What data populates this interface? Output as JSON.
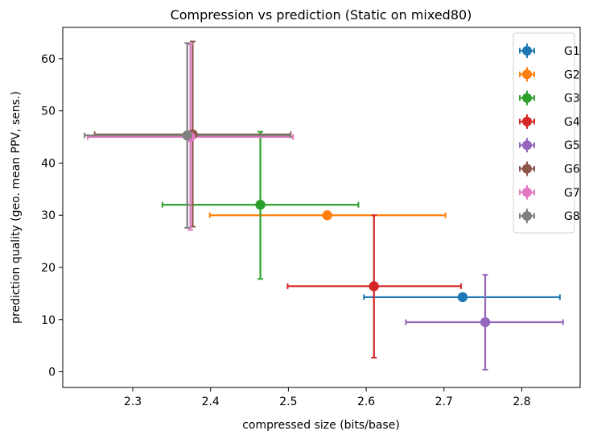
{
  "chart_data": {
    "type": "scatter",
    "title": "Compression vs prediction (Static on mixed80)",
    "xlabel": "compressed size (bits/base)",
    "ylabel": "prediction quality (geo. mean PPV, sens.)",
    "xlim": [
      2.21,
      2.875
    ],
    "ylim": [
      -3,
      66
    ],
    "xticks": [
      "2.3",
      "2.4",
      "2.5",
      "2.6",
      "2.7",
      "2.8"
    ],
    "yticks": [
      "0",
      "10",
      "20",
      "30",
      "40",
      "50",
      "60"
    ],
    "legend_position": "top-right",
    "series": [
      {
        "name": "G1",
        "color": "#1f77b4",
        "x": 2.724,
        "y": 14.3,
        "xerr": [
          2.597,
          2.849
        ],
        "yerr": [
          14.3,
          14.3
        ]
      },
      {
        "name": "G2",
        "color": "#ff7f0e",
        "x": 2.55,
        "y": 30.0,
        "xerr": [
          2.399,
          2.702
        ],
        "yerr": [
          30.0,
          30.0
        ]
      },
      {
        "name": "G3",
        "color": "#2ca02c",
        "x": 2.464,
        "y": 32.0,
        "xerr": [
          2.338,
          2.59
        ],
        "yerr": [
          17.8,
          46.0
        ]
      },
      {
        "name": "G4",
        "color": "#d62728",
        "x": 2.61,
        "y": 16.4,
        "xerr": [
          2.499,
          2.722
        ],
        "yerr": [
          2.7,
          30.0
        ]
      },
      {
        "name": "G5",
        "color": "#9467bd",
        "x": 2.753,
        "y": 9.5,
        "xerr": [
          2.651,
          2.853
        ],
        "yerr": [
          0.4,
          18.6
        ]
      },
      {
        "name": "G6",
        "color": "#8c564b",
        "x": 2.377,
        "y": 45.5,
        "xerr": [
          2.251,
          2.503
        ],
        "yerr": [
          27.8,
          63.3
        ]
      },
      {
        "name": "G7",
        "color": "#e377c2",
        "x": 2.374,
        "y": 45.0,
        "xerr": [
          2.242,
          2.506
        ],
        "yerr": [
          27.2,
          62.8
        ]
      },
      {
        "name": "G8",
        "color": "#7f7f7f",
        "x": 2.37,
        "y": 45.3,
        "xerr": [
          2.238,
          2.503
        ],
        "yerr": [
          27.6,
          63.0
        ]
      }
    ]
  }
}
